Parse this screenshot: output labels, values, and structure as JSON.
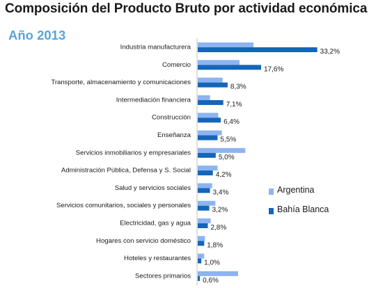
{
  "title": "Composición del Producto Bruto por actividad económica",
  "subtitle": "Año 2013",
  "colors": {
    "argentina": "#8db4f0",
    "bahia_blanca": "#1565b8",
    "subtitle": "#5ba3d6"
  },
  "legend": {
    "placement": "right",
    "items": [
      {
        "name": "Argentina",
        "color": "#8db4f0"
      },
      {
        "name": "Bahía Blanca",
        "color": "#1565b8"
      }
    ]
  },
  "chart_data": {
    "type": "bar",
    "orientation": "horizontal",
    "title": "Composición del Producto Bruto por actividad económica",
    "subtitle": "Año 2013",
    "xlim": [
      0,
      35
    ],
    "grid": false,
    "categories": [
      "Industria manufacturera",
      "Comercio",
      "Transporte, almacenamiento y comunicaciones",
      "Intermediación financiera",
      "Construcción",
      "Enseñanza",
      "Servicios inmobiliarios y empresariales",
      "Administración Pública, Defensa y S. Social",
      "Salud y servicios sociales",
      "Servicios comunitarios, sociales y personales",
      "Electricidad, gas y agua",
      "Hogares con servicio doméstico",
      "Hoteles y restaurantes",
      "Sectores primarios"
    ],
    "series": [
      {
        "name": "Argentina",
        "values": [
          15.5,
          11.6,
          6.9,
          3.4,
          5.7,
          6.7,
          13.2,
          5.5,
          4.0,
          4.9,
          3.6,
          2.0,
          1.8,
          11.2
        ]
      },
      {
        "name": "Bahía Blanca",
        "values": [
          33.2,
          17.6,
          8.3,
          7.1,
          6.4,
          5.5,
          5.0,
          4.2,
          3.4,
          3.2,
          2.8,
          1.8,
          1.0,
          0.6
        ],
        "labels": [
          "33,2%",
          "17,6%",
          "8,3%",
          "7,1%",
          "6,4%",
          "5,5%",
          "5,0%",
          "4,2%",
          "3,4%",
          "3,2%",
          "2,8%",
          "1,8%",
          "1,0%",
          "0,6%"
        ]
      }
    ]
  }
}
